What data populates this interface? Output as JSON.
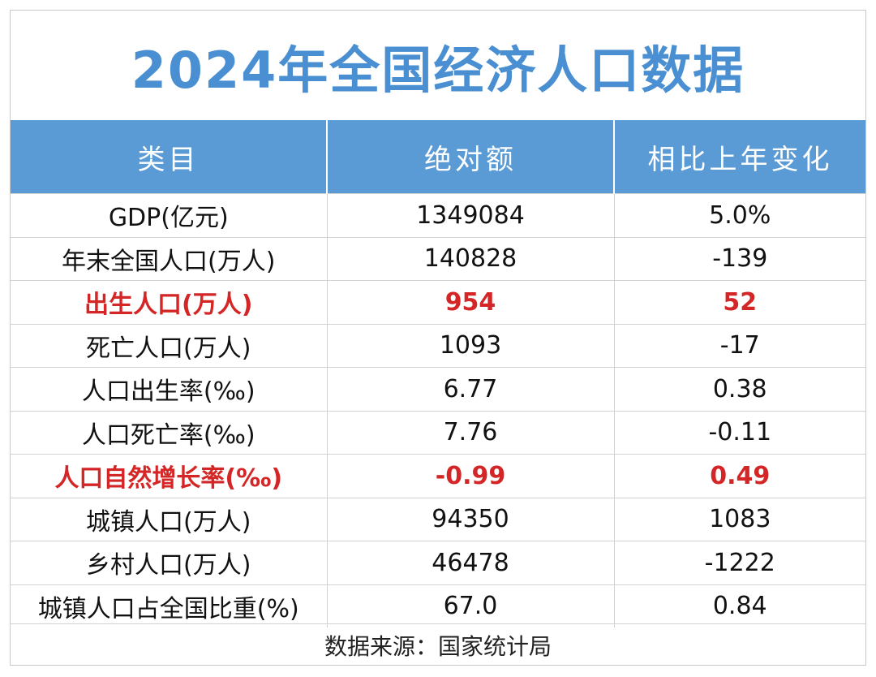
{
  "title": "2024年全国经济人口数据",
  "table": {
    "headers": [
      "类目",
      "绝对额",
      "相比上年变化"
    ],
    "rows": [
      {
        "category": "GDP(亿元)",
        "value": "1349084",
        "change": "5.0%",
        "highlight": false
      },
      {
        "category": "年末全国人口(万人)",
        "value": "140828",
        "change": "-139",
        "highlight": false
      },
      {
        "category": "出生人口(万人)",
        "value": "954",
        "change": "52",
        "highlight": true
      },
      {
        "category": "死亡人口(万人)",
        "value": "1093",
        "change": "-17",
        "highlight": false
      },
      {
        "category": "人口出生率(‰)",
        "value": "6.77",
        "change": "0.38",
        "highlight": false
      },
      {
        "category": "人口死亡率(‰)",
        "value": "7.76",
        "change": "-0.11",
        "highlight": false
      },
      {
        "category": "人口自然增长率(‰)",
        "value": "-0.99",
        "change": "0.49",
        "highlight": true
      },
      {
        "category": "城镇人口(万人)",
        "value": "94350",
        "change": "1083",
        "highlight": false
      },
      {
        "category": "乡村人口(万人)",
        "value": "46478",
        "change": "-1222",
        "highlight": false
      },
      {
        "category": "城镇人口占全国比重(%)",
        "value": "67.0",
        "change": "0.84",
        "highlight": false
      }
    ]
  },
  "source": "数据来源：国家统计局",
  "colors": {
    "title": "#4a8fd1",
    "header_bg": "#5b9bd5",
    "highlight": "#d42626"
  }
}
